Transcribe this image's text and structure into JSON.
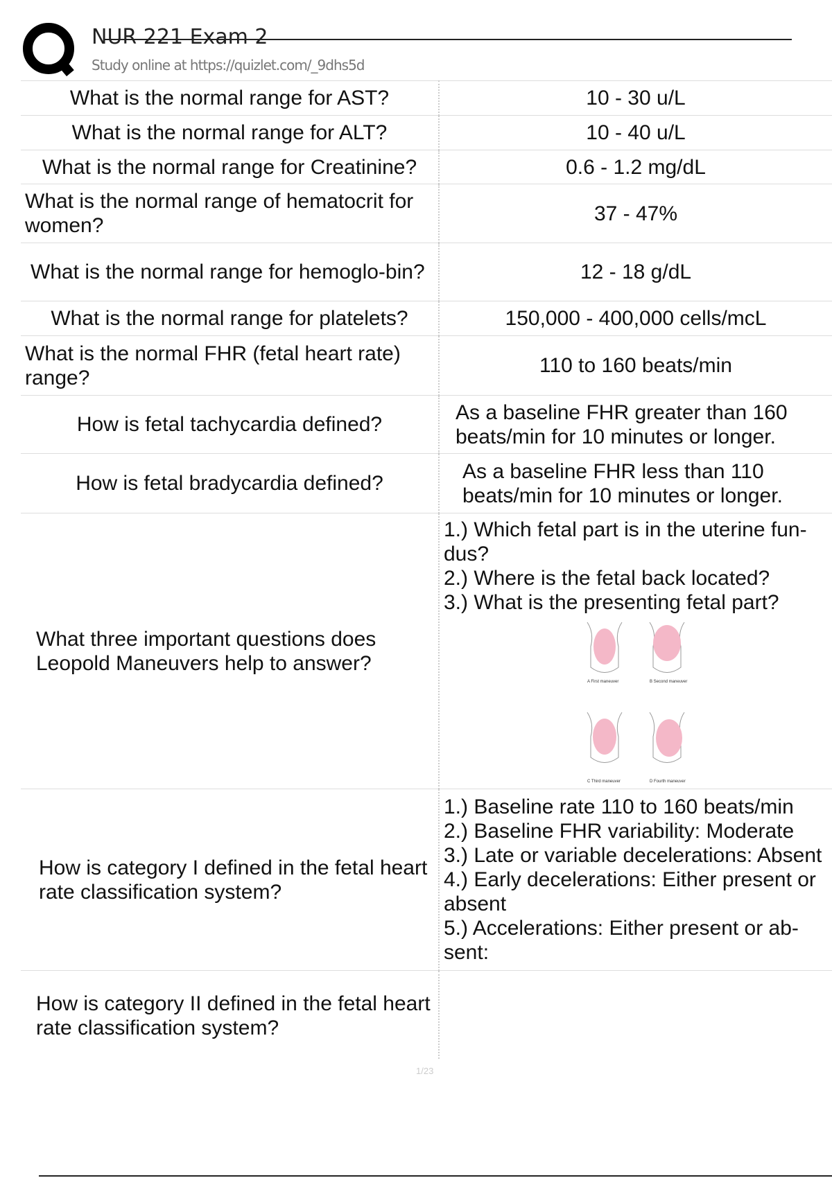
{
  "header": {
    "title": "NUR 221 Exam 2",
    "subtitle": "Study online at https://quizlet.com/_9dhs5d",
    "logo": "quizlet-q-logo"
  },
  "cards": [
    {
      "q": "What is the normal range for AST?",
      "a": "10 - 30 u/L"
    },
    {
      "q": "What is the normal range for ALT?",
      "a": "10 - 40 u/L"
    },
    {
      "q": "What is the normal range for Creatinine?",
      "a": "0.6 - 1.2 mg/dL"
    },
    {
      "q": "What is the normal range of hematocrit for women?",
      "a": "37 - 47%"
    },
    {
      "q": "What is the normal range for hemoglo-bin?",
      "a": "12 - 18 g/dL"
    },
    {
      "q": "What is the normal range for platelets?",
      "a": "150,000 - 400,000 cells/mcL"
    },
    {
      "q": "What is the normal FHR (fetal heart rate) range?",
      "a": "110 to 160 beats/min"
    },
    {
      "q": "How is fetal tachycardia defined?",
      "a": "As a baseline FHR greater than 160 beats/min for 10 minutes or longer."
    },
    {
      "q": "How is fetal bradycardia defined?",
      "a": "As a baseline FHR less than 110 beats/min for 10 minutes or longer."
    },
    {
      "q": "What three important questions does Leopold Maneuvers help to answer?",
      "a_lines": [
        "1.) Which fetal part is in the uterine fun-dus?",
        "2.) Where is the fetal back located?",
        "3.) What is the presenting fetal part?"
      ],
      "figure_labels": [
        "A First maneuver",
        "B Second maneuver",
        "C Third maneuver",
        "D Fourth maneuver"
      ]
    },
    {
      "q": "How is category I defined in the fetal heart rate classification system?",
      "a_lines": [
        "1.) Baseline rate 110 to 160 beats/min",
        "2.) Baseline FHR variability: Moderate",
        "3.) Late or variable decelerations: Absent",
        "4.) Early decelerations: Either present or absent",
        "5.) Accelerations: Either present or ab-sent:"
      ]
    },
    {
      "q": "How is category II defined in the fetal heart rate classification system?",
      "a": ""
    }
  ],
  "footer": {
    "page": "1/23"
  }
}
